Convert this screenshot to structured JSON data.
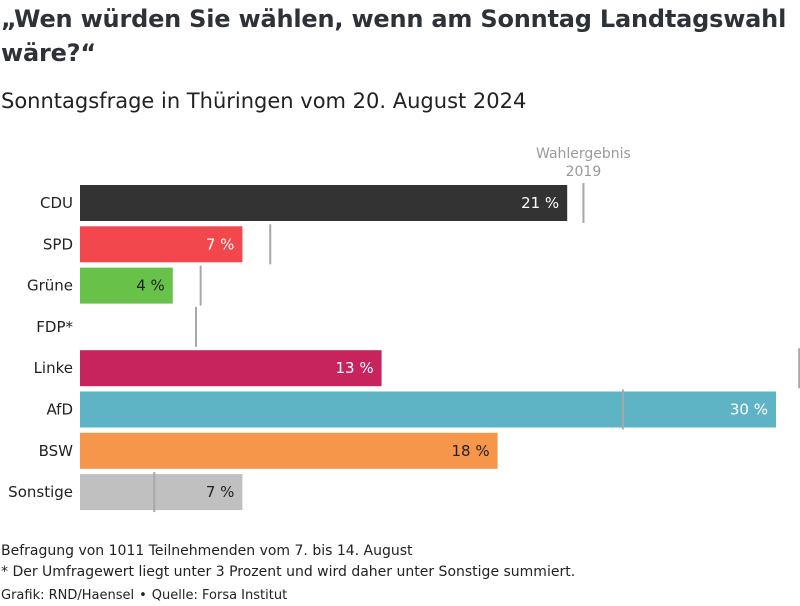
{
  "title": "„Wen würden Sie wählen, wenn am Sonntag Landtagswahl wäre?“",
  "subtitle": "Sonntagsfrage in Thüringen vom 20. August 2024",
  "chart_data": {
    "type": "bar",
    "orientation": "horizontal",
    "categories": [
      "CDU",
      "SPD",
      "Grüne",
      "FDP*",
      "Linke",
      "AfD",
      "BSW",
      "Sonstige"
    ],
    "values": [
      21,
      7,
      4,
      0,
      13,
      30,
      18,
      7
    ],
    "value_labels": [
      "21 %",
      "7 %",
      "4 %",
      "",
      "13 %",
      "30 %",
      "18 %",
      "7 %"
    ],
    "colors": [
      "#333333",
      "#f2474d",
      "#68c24a",
      "#f5d20a",
      "#c7245e",
      "#5eb3c4",
      "#f5964a",
      "#c0c0c0"
    ],
    "label_colors": [
      "#ffffff",
      "#ffffff",
      "#222222",
      "#222222",
      "#ffffff",
      "#ffffff",
      "#222222",
      "#222222"
    ],
    "reference": {
      "name_line1": "Wahlergebnis",
      "name_line2": "2019",
      "values": [
        21.7,
        8.2,
        5.2,
        5.0,
        31.0,
        23.4,
        0,
        3.2
      ]
    },
    "xlim": [
      0,
      30
    ]
  },
  "notes": {
    "survey": "Befragung von 1011 Teilnehmenden vom 7. bis 14. August",
    "footnote": "* Der Umfragewert liegt unter 3 Prozent und wird daher unter Sonstige summiert."
  },
  "credit": {
    "graphic": "Grafik: RND/Haensel",
    "separator": "•",
    "source": "Quelle: Forsa Institut"
  }
}
